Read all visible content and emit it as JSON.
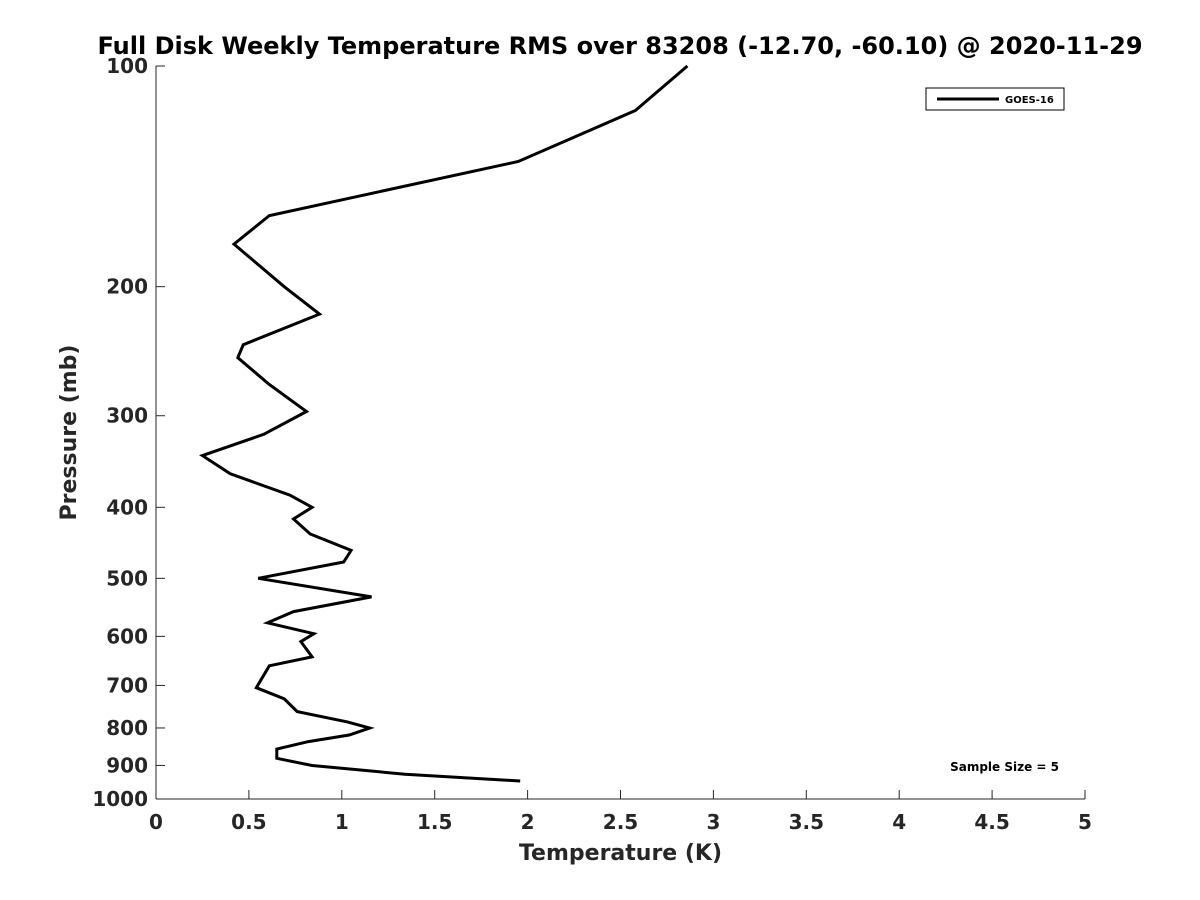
{
  "chart_data": {
    "type": "line",
    "title": "Full Disk Weekly Temperature RMS over 83208 (-12.70, -60.10) @ 2020-11-29",
    "xlabel": "Temperature (K)",
    "ylabel": "Pressure (mb)",
    "xlim": [
      0,
      5
    ],
    "ylim": [
      100,
      1000
    ],
    "y_scale": "log",
    "y_reversed": true,
    "x_ticks": [
      0,
      0.5,
      1,
      1.5,
      2,
      2.5,
      3,
      3.5,
      4,
      4.5,
      5
    ],
    "x_tick_labels": [
      "0",
      "0.5",
      "1",
      "1.5",
      "2",
      "2.5",
      "3",
      "3.5",
      "4",
      "4.5",
      "5"
    ],
    "y_ticks": [
      100,
      200,
      300,
      400,
      500,
      600,
      700,
      800,
      900,
      1000
    ],
    "y_tick_labels": [
      "100",
      "200",
      "300",
      "400",
      "500",
      "600",
      "700",
      "800",
      "900",
      "1000"
    ],
    "grid": false,
    "legend_position": "top-right",
    "annotation": "Sample Size = 5",
    "series": [
      {
        "name": "GOES-16",
        "color": "#000000",
        "x": [
          2.86,
          2.58,
          1.95,
          0.61,
          0.42,
          0.69,
          0.88,
          0.47,
          0.44,
          0.61,
          0.81,
          0.58,
          0.25,
          0.4,
          0.72,
          0.84,
          0.74,
          0.83,
          1.05,
          1.01,
          0.55,
          1.16,
          0.74,
          0.6,
          0.85,
          0.78,
          0.84,
          0.61,
          0.54,
          0.69,
          0.76,
          1.03,
          1.15,
          1.04,
          0.82,
          0.65,
          0.65,
          0.84,
          1.34,
          1.96
        ],
        "y": [
          100,
          115,
          135,
          160,
          175,
          200,
          218,
          240,
          250,
          272,
          296,
          318,
          340,
          360,
          385,
          400,
          415,
          435,
          458,
          475,
          500,
          530,
          555,
          575,
          595,
          610,
          640,
          658,
          705,
          730,
          760,
          785,
          800,
          818,
          835,
          855,
          880,
          900,
          925,
          945
        ]
      }
    ]
  }
}
